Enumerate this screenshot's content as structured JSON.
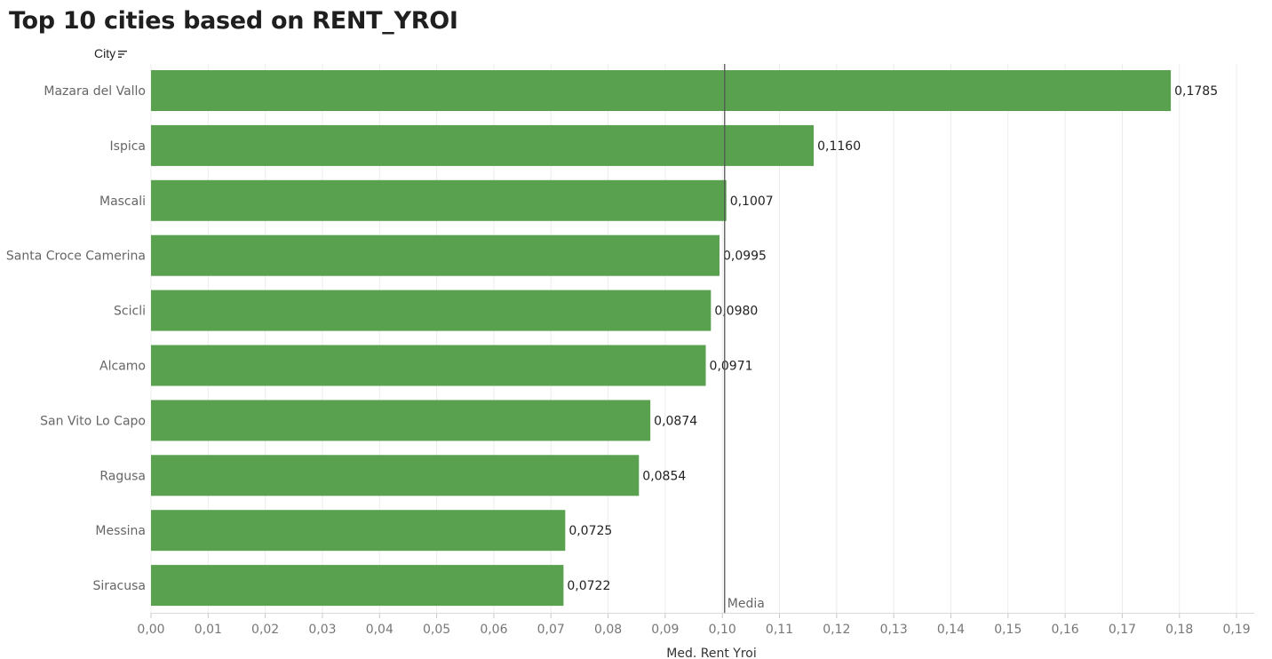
{
  "title": "Top 10 cities based on RENT_YROI",
  "row_header": {
    "label": "City",
    "icon": "sort-descending-icon"
  },
  "colors": {
    "bar": "#59a14f",
    "grid": "#ececec",
    "reference_line": "#555555"
  },
  "chart_data": {
    "type": "bar",
    "orientation": "horizontal",
    "categories": [
      "Mazara del Vallo",
      "Ispica",
      "Mascali",
      "Santa Croce Camerina",
      "Scicli",
      "Alcamo",
      "San Vito Lo Capo",
      "Ragusa",
      "Messina",
      "Siracusa"
    ],
    "values": [
      0.1785,
      0.116,
      0.1007,
      0.0995,
      0.098,
      0.0971,
      0.0874,
      0.0854,
      0.0725,
      0.0722
    ],
    "value_labels": [
      "0,1785",
      "0,1160",
      "0,1007",
      "0,0995",
      "0,0980",
      "0,0971",
      "0,0874",
      "0,0854",
      "0,0725",
      "0,0722"
    ],
    "xlabel": "Med. Rent Yroi",
    "ylabel": "City",
    "xlim": [
      0,
      0.19
    ],
    "ticks": [
      0,
      0.01,
      0.02,
      0.03,
      0.04,
      0.05,
      0.06,
      0.07,
      0.08,
      0.09,
      0.1,
      0.11,
      0.12,
      0.13,
      0.14,
      0.15,
      0.16,
      0.17,
      0.18,
      0.19
    ],
    "tick_labels": [
      "0,00",
      "0,01",
      "0,02",
      "0,03",
      "0,04",
      "0,05",
      "0,06",
      "0,07",
      "0,08",
      "0,09",
      "0,10",
      "0,11",
      "0,12",
      "0,13",
      "0,14",
      "0,15",
      "0,16",
      "0,17",
      "0,18",
      "0,19"
    ],
    "reference_line": {
      "label": "Media",
      "value": 0.1004
    },
    "grid": "vertical"
  }
}
